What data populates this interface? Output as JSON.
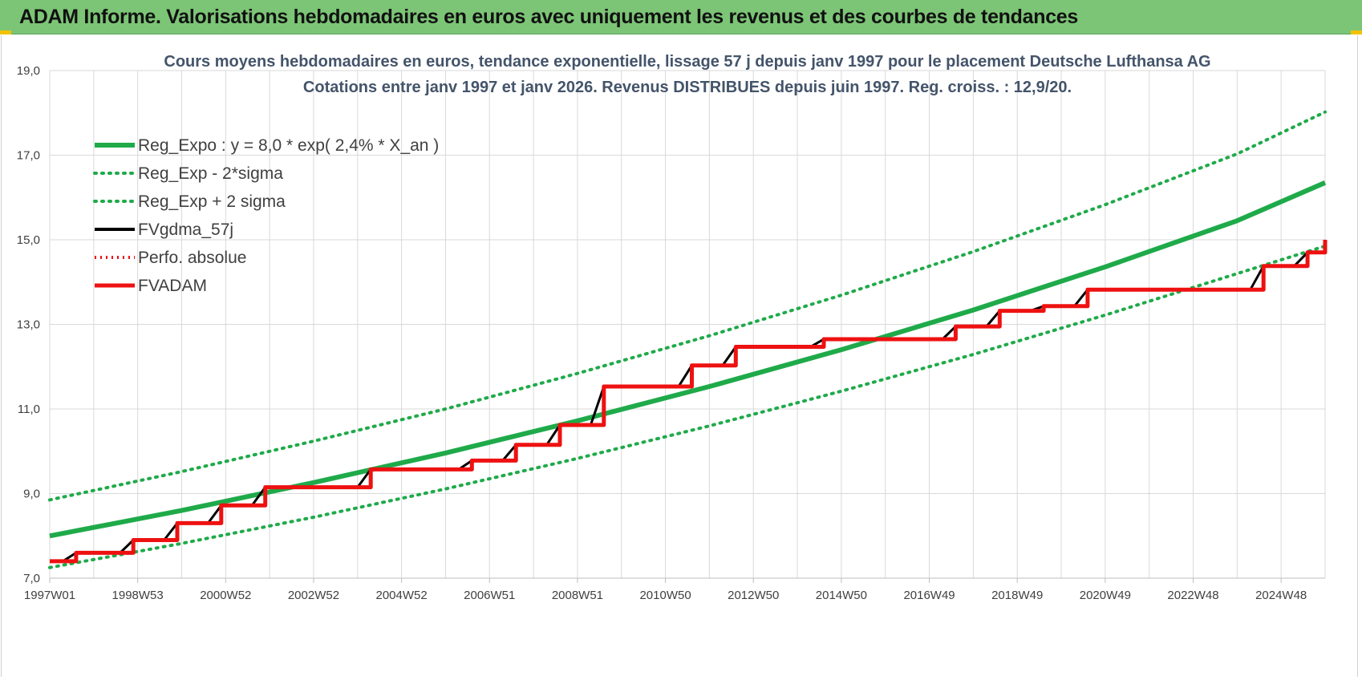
{
  "header": {
    "title": "ADAM Informe. Valorisations hebdomadaires en euros avec uniquement les revenus et des courbes de tendances"
  },
  "colors": {
    "header_bg": "#7cc576",
    "reg_green": "#1faa4a",
    "fv_black": "#000000",
    "fvadam_red": "#ee1111",
    "grid": "#d9d9d9"
  },
  "chart_data": {
    "type": "line",
    "title": [
      "Cours moyens hebdomadaires en euros, tendance exponentielle, lissage 57 j depuis janv 1997 pour le placement Deutsche Lufthansa AG",
      "Cotations entre janv 1997 et janv 2026. Revenus DISTRIBUES depuis juin 1997. Reg. croiss. : 12,9/20."
    ],
    "xlabel": "",
    "ylabel": "",
    "x_range": [
      1997.0,
      2026.0
    ],
    "ylim": [
      7.0,
      19.0
    ],
    "y_ticks": [
      "7,0",
      "9,0",
      "11,0",
      "13,0",
      "15,0",
      "17,0",
      "19,0"
    ],
    "x_ticks": [
      {
        "label": "1997W01",
        "x": 1997.0
      },
      {
        "label": "1998W53",
        "x": 1999.0
      },
      {
        "label": "2000W52",
        "x": 2001.0
      },
      {
        "label": "2002W52",
        "x": 2003.0
      },
      {
        "label": "2004W52",
        "x": 2005.0
      },
      {
        "label": "2006W51",
        "x": 2007.0
      },
      {
        "label": "2008W51",
        "x": 2009.0
      },
      {
        "label": "2010W50",
        "x": 2011.0
      },
      {
        "label": "2012W50",
        "x": 2013.0
      },
      {
        "label": "2014W50",
        "x": 2015.0
      },
      {
        "label": "2016W49",
        "x": 2017.0
      },
      {
        "label": "2018W49",
        "x": 2019.0
      },
      {
        "label": "2020W49",
        "x": 2021.0
      },
      {
        "label": "2022W48",
        "x": 2023.0
      },
      {
        "label": "2024W48",
        "x": 2025.0
      }
    ],
    "grid": true,
    "legend_position": "top-left",
    "series": [
      {
        "name": "Reg_Expo : y = 8,0 * exp( 2,4% *  X_an )",
        "style": "solid",
        "x": [
          1997.0,
          2000.0,
          2003.0,
          2006.0,
          2009.0,
          2012.0,
          2015.0,
          2018.0,
          2021.0,
          2024.0,
          2026.0
        ],
        "values": [
          8.0,
          8.6,
          9.26,
          9.96,
          10.72,
          11.53,
          12.4,
          13.34,
          14.36,
          15.45,
          16.35
        ]
      },
      {
        "name": "Reg_Exp - 2*sigma",
        "style": "dotted",
        "x": [
          1997.0,
          2000.0,
          2003.0,
          2006.0,
          2009.0,
          2012.0,
          2015.0,
          2018.0,
          2021.0,
          2024.0,
          2026.0
        ],
        "values": [
          7.25,
          7.82,
          8.44,
          9.11,
          9.83,
          10.6,
          11.42,
          12.29,
          13.22,
          14.2,
          14.85
        ]
      },
      {
        "name": "Reg_Exp + 2 sigma",
        "style": "dotted",
        "x": [
          1997.0,
          2000.0,
          2003.0,
          2006.0,
          2009.0,
          2012.0,
          2015.0,
          2018.0,
          2021.0,
          2024.0,
          2026.0
        ],
        "values": [
          8.85,
          9.52,
          10.24,
          11.0,
          11.84,
          12.73,
          13.69,
          14.72,
          15.83,
          17.03,
          18.02
        ]
      },
      {
        "name": "FVgdma_57j",
        "style": "solid-thin",
        "x": [
          1997.0,
          1997.3,
          1997.6,
          1998.6,
          1998.9,
          1999.6,
          1999.9,
          2000.6,
          2000.9,
          2001.6,
          2001.9,
          2004.0,
          2004.3,
          2006.3,
          2006.6,
          2007.3,
          2007.6,
          2008.3,
          2008.6,
          2009.3,
          2009.6,
          2011.3,
          2011.6,
          2012.3,
          2012.6,
          2014.3,
          2014.6,
          2017.3,
          2017.6,
          2018.3,
          2018.6,
          2019.3,
          2019.6,
          2020.3,
          2020.6,
          2024.3,
          2024.6,
          2025.3,
          2025.6,
          2026.0
        ],
        "values": [
          7.4,
          7.4,
          7.6,
          7.6,
          7.9,
          7.9,
          8.3,
          8.3,
          8.72,
          8.72,
          9.15,
          9.15,
          9.57,
          9.57,
          9.78,
          9.78,
          10.15,
          10.15,
          10.62,
          10.62,
          11.53,
          11.53,
          12.03,
          12.03,
          12.47,
          12.47,
          12.65,
          12.65,
          12.95,
          12.95,
          13.32,
          13.32,
          13.43,
          13.43,
          13.82,
          13.82,
          14.38,
          14.38,
          14.7,
          14.7
        ]
      },
      {
        "name": "Perfo. absolue",
        "style": "dotted-red",
        "x": [],
        "values": []
      },
      {
        "name": "FVADAM",
        "style": "step",
        "x": [
          1997.0,
          1997.6,
          1998.9,
          1999.9,
          2000.9,
          2001.9,
          2004.3,
          2006.6,
          2007.6,
          2008.6,
          2009.6,
          2011.6,
          2012.6,
          2014.6,
          2017.6,
          2018.6,
          2019.6,
          2020.6,
          2024.6,
          2025.6,
          2026.0
        ],
        "values": [
          7.4,
          7.6,
          7.9,
          8.3,
          8.72,
          9.15,
          9.57,
          9.78,
          10.15,
          10.62,
          11.53,
          12.03,
          12.47,
          12.65,
          12.95,
          13.32,
          13.43,
          13.82,
          14.38,
          14.7,
          15.0
        ]
      }
    ]
  }
}
